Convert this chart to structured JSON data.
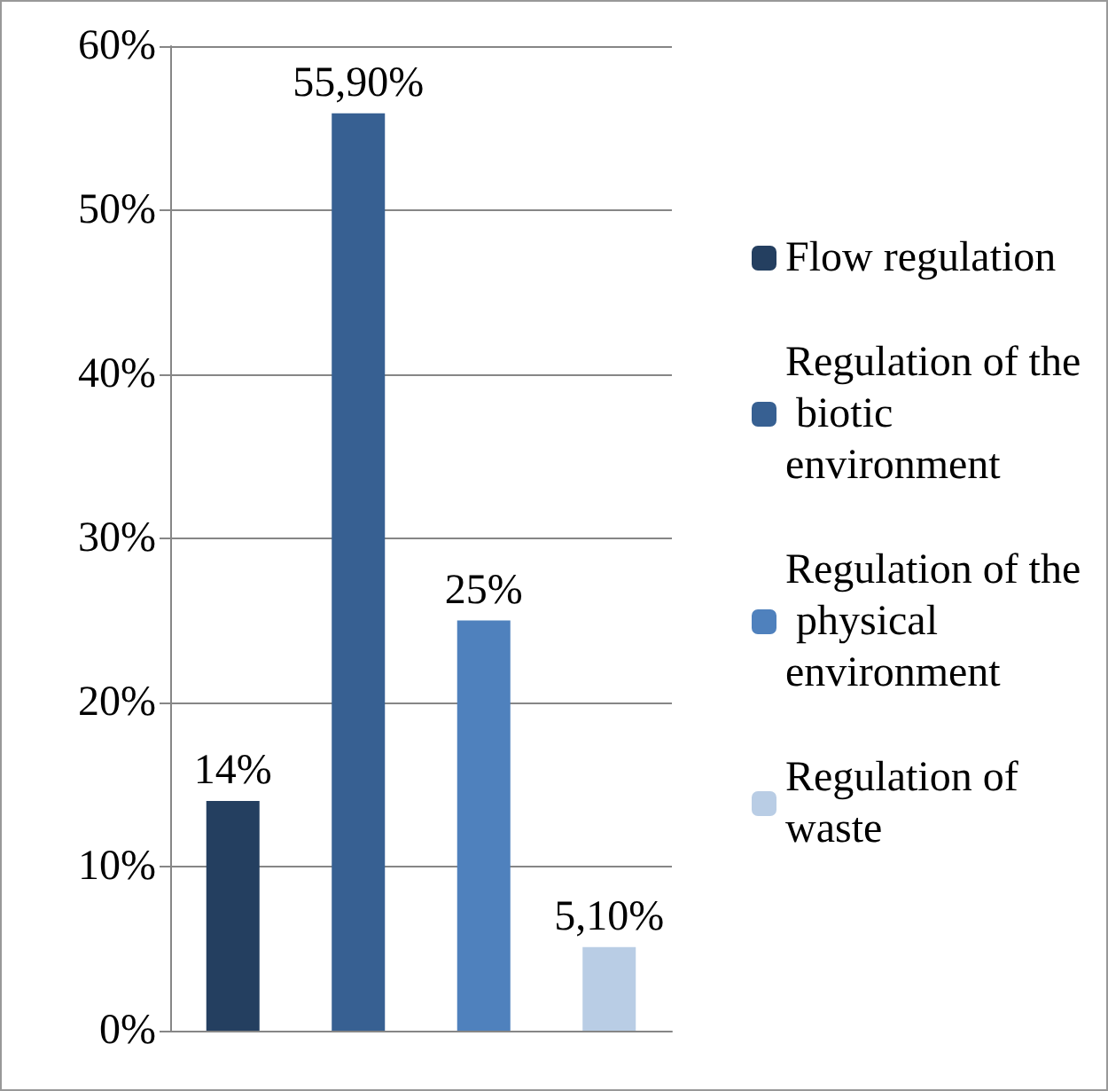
{
  "chart_data": {
    "type": "bar",
    "categories": [
      null,
      null,
      null,
      null
    ],
    "series": [
      {
        "name": "Flow regulation",
        "color": "#243f60",
        "values": [
          14,
          null,
          null,
          null
        ],
        "value_labels": [
          "14%",
          null,
          null,
          null
        ]
      },
      {
        "name": "Regulation of the biotic environment",
        "color": "#376092",
        "values": [
          null,
          55.9,
          null,
          null
        ],
        "value_labels": [
          null,
          "55,90%",
          null,
          null
        ]
      },
      {
        "name": "Regulation of the physical environment",
        "color": "#4f81bd",
        "values": [
          null,
          null,
          25,
          null
        ],
        "value_labels": [
          null,
          null,
          "25%",
          null
        ]
      },
      {
        "name": "Regulation of waste",
        "color": "#b9cde5",
        "values": [
          null,
          null,
          null,
          5.1
        ],
        "value_labels": [
          null,
          null,
          null,
          "5,10%"
        ]
      }
    ],
    "ylim": [
      0,
      60
    ],
    "yticks": [
      {
        "value": 0,
        "label": "0%"
      },
      {
        "value": 10,
        "label": "10%"
      },
      {
        "value": 20,
        "label": "20%"
      },
      {
        "value": 30,
        "label": "30%"
      },
      {
        "value": 40,
        "label": "40%"
      },
      {
        "value": 50,
        "label": "50%"
      },
      {
        "value": 60,
        "label": "60%"
      }
    ],
    "grid": "y",
    "legend": "right"
  }
}
